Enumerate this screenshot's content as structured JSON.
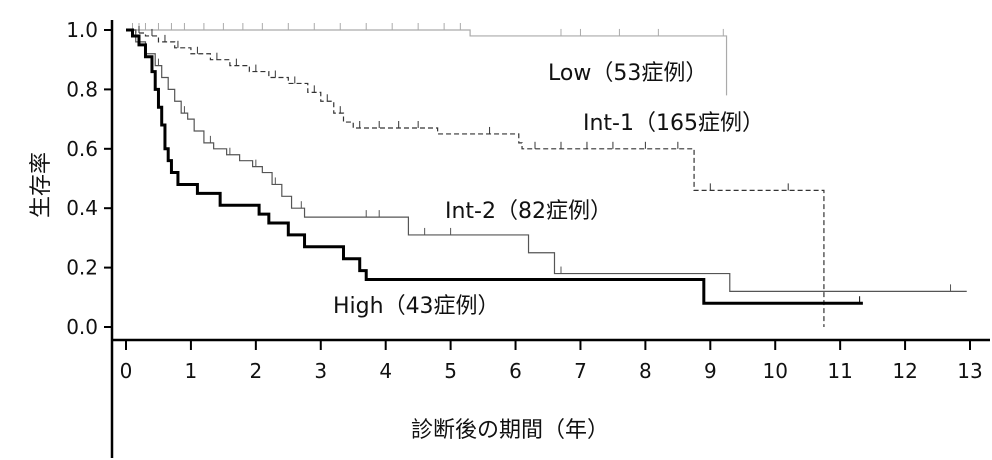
{
  "chart_data": {
    "type": "line",
    "subtype": "kaplan-meier step curves with censoring ticks",
    "title": "",
    "xlabel": "診断後の期間（年）",
    "ylabel": "生存率",
    "xlim": [
      0,
      13
    ],
    "ylim": [
      0.0,
      1.0
    ],
    "x_ticks": [
      "0",
      "1",
      "2",
      "3",
      "4",
      "5",
      "6",
      "7",
      "8",
      "9",
      "10",
      "11",
      "12",
      "13"
    ],
    "y_ticks": [
      "0.0",
      "0.2",
      "0.4",
      "0.6",
      "0.8",
      "1.0"
    ],
    "grid": false,
    "legend": "inline labels",
    "series": [
      {
        "name": "Low（53症例）",
        "color": "#aaaaaa",
        "style": "solid-thin",
        "steps": [
          [
            0,
            1.0
          ],
          [
            5.3,
            0.98
          ],
          [
            9.25,
            0.78
          ]
        ],
        "end_x": 9.25,
        "censor_x": [
          0.1,
          0.2,
          0.3,
          0.5,
          0.7,
          0.9,
          1.2,
          1.5,
          1.8,
          2.1,
          2.5,
          2.9,
          3.3,
          3.7,
          4.1,
          4.5,
          4.9,
          5.15,
          6.7,
          7.0,
          7.6,
          8.2,
          9.2
        ]
      },
      {
        "name": "Int-1（165症例）",
        "color": "#333333",
        "style": "dashed",
        "steps": [
          [
            0,
            1.0
          ],
          [
            0.15,
            0.99
          ],
          [
            0.3,
            0.98
          ],
          [
            0.5,
            0.96
          ],
          [
            0.75,
            0.94
          ],
          [
            1.0,
            0.92
          ],
          [
            1.3,
            0.9
          ],
          [
            1.6,
            0.88
          ],
          [
            1.9,
            0.86
          ],
          [
            2.2,
            0.84
          ],
          [
            2.5,
            0.82
          ],
          [
            2.8,
            0.79
          ],
          [
            3.0,
            0.76
          ],
          [
            3.2,
            0.72
          ],
          [
            3.35,
            0.69
          ],
          [
            3.5,
            0.67
          ],
          [
            4.8,
            0.65
          ],
          [
            6.05,
            0.62
          ],
          [
            6.1,
            0.6
          ],
          [
            8.75,
            0.46
          ],
          [
            10.75,
            0.0
          ]
        ],
        "end_x": 10.75,
        "censor_x": [
          0.2,
          0.4,
          0.6,
          0.8,
          1.1,
          1.4,
          1.7,
          2.0,
          2.3,
          2.6,
          2.9,
          3.1,
          3.3,
          3.6,
          3.9,
          4.2,
          4.5,
          5.6,
          6.3,
          6.7,
          7.1,
          7.5,
          8.0,
          8.5,
          9.0,
          10.2
        ]
      },
      {
        "name": "Int-2（82症例）",
        "color": "#555555",
        "style": "solid-thin",
        "steps": [
          [
            0,
            1.0
          ],
          [
            0.15,
            0.96
          ],
          [
            0.3,
            0.92
          ],
          [
            0.45,
            0.88
          ],
          [
            0.55,
            0.84
          ],
          [
            0.65,
            0.8
          ],
          [
            0.75,
            0.76
          ],
          [
            0.85,
            0.72
          ],
          [
            0.95,
            0.7
          ],
          [
            1.05,
            0.66
          ],
          [
            1.2,
            0.62
          ],
          [
            1.35,
            0.6
          ],
          [
            1.55,
            0.58
          ],
          [
            1.75,
            0.56
          ],
          [
            1.95,
            0.54
          ],
          [
            2.1,
            0.52
          ],
          [
            2.25,
            0.48
          ],
          [
            2.4,
            0.44
          ],
          [
            2.55,
            0.4
          ],
          [
            2.75,
            0.37
          ],
          [
            4.35,
            0.31
          ],
          [
            6.2,
            0.25
          ],
          [
            6.6,
            0.18
          ],
          [
            9.3,
            0.12
          ]
        ],
        "end_x": 12.95,
        "censor_x": [
          0.5,
          0.9,
          1.3,
          1.6,
          2.0,
          2.3,
          2.7,
          3.7,
          3.9,
          4.6,
          5.0,
          6.7,
          12.7
        ]
      },
      {
        "name": "High（43症例）",
        "color": "#000000",
        "style": "solid-bold",
        "steps": [
          [
            0,
            1.0
          ],
          [
            0.1,
            0.98
          ],
          [
            0.2,
            0.95
          ],
          [
            0.3,
            0.91
          ],
          [
            0.4,
            0.86
          ],
          [
            0.45,
            0.8
          ],
          [
            0.5,
            0.74
          ],
          [
            0.55,
            0.68
          ],
          [
            0.6,
            0.6
          ],
          [
            0.65,
            0.56
          ],
          [
            0.7,
            0.52
          ],
          [
            0.8,
            0.48
          ],
          [
            1.1,
            0.45
          ],
          [
            1.45,
            0.41
          ],
          [
            2.05,
            0.38
          ],
          [
            2.2,
            0.35
          ],
          [
            2.5,
            0.31
          ],
          [
            2.75,
            0.27
          ],
          [
            3.35,
            0.23
          ],
          [
            3.6,
            0.19
          ],
          [
            3.7,
            0.16
          ],
          [
            8.9,
            0.08
          ]
        ],
        "end_x": 11.35,
        "censor_x": [
          11.3
        ]
      }
    ]
  }
}
